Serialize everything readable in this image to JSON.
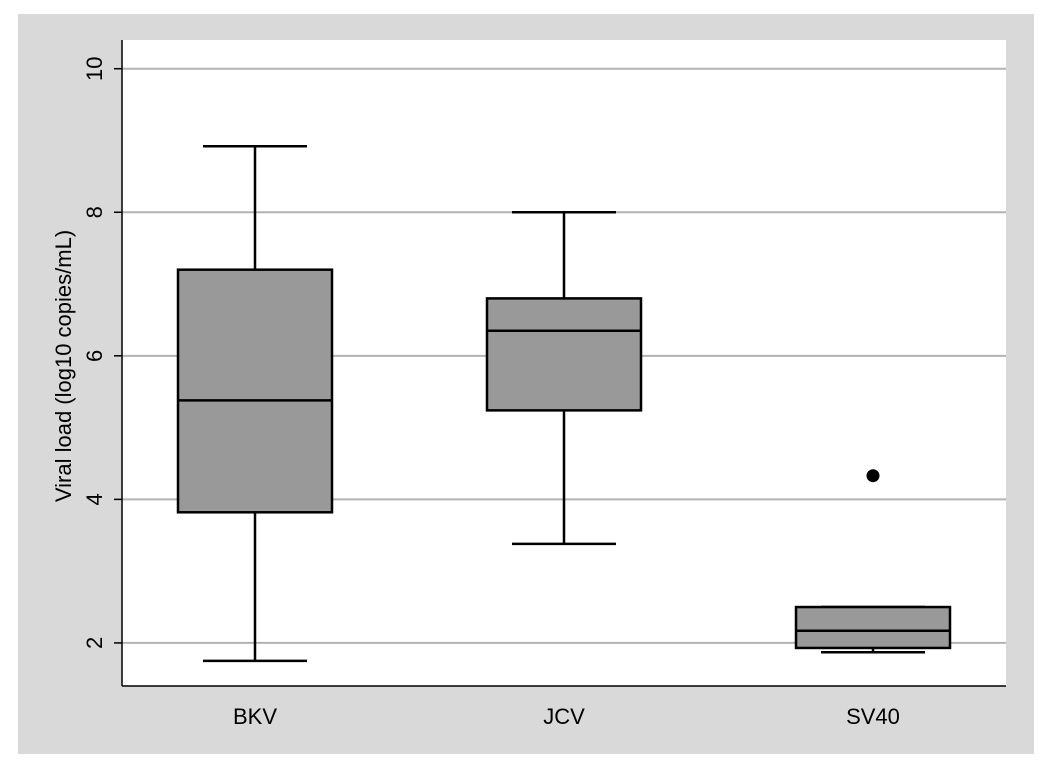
{
  "chart_data": {
    "type": "box",
    "title": "",
    "xlabel": "",
    "ylabel": "Viral load (log10 copies/mL)",
    "ylim": [
      1.4,
      10.4
    ],
    "yticks": [
      2,
      4,
      6,
      8,
      10
    ],
    "grid": true,
    "categories": [
      "BKV",
      "JCV",
      "SV40"
    ],
    "boxes": [
      {
        "name": "BKV",
        "whisker_low": 1.75,
        "q1": 3.82,
        "median": 5.38,
        "q3": 7.2,
        "whisker_high": 8.92,
        "outliers": []
      },
      {
        "name": "JCV",
        "whisker_low": 3.38,
        "q1": 5.24,
        "median": 6.35,
        "q3": 6.8,
        "whisker_high": 8.0,
        "outliers": []
      },
      {
        "name": "SV40",
        "whisker_low": 1.87,
        "q1": 1.93,
        "median": 2.17,
        "q3": 2.5,
        "whisker_high": 2.5,
        "outliers": [
          4.33
        ]
      }
    ],
    "colors": {
      "frame": "#d9d9d9",
      "plot_bg": "#ffffff",
      "box_fill": "#999999",
      "grid": "#b3b3b3",
      "stroke": "#000000"
    }
  }
}
